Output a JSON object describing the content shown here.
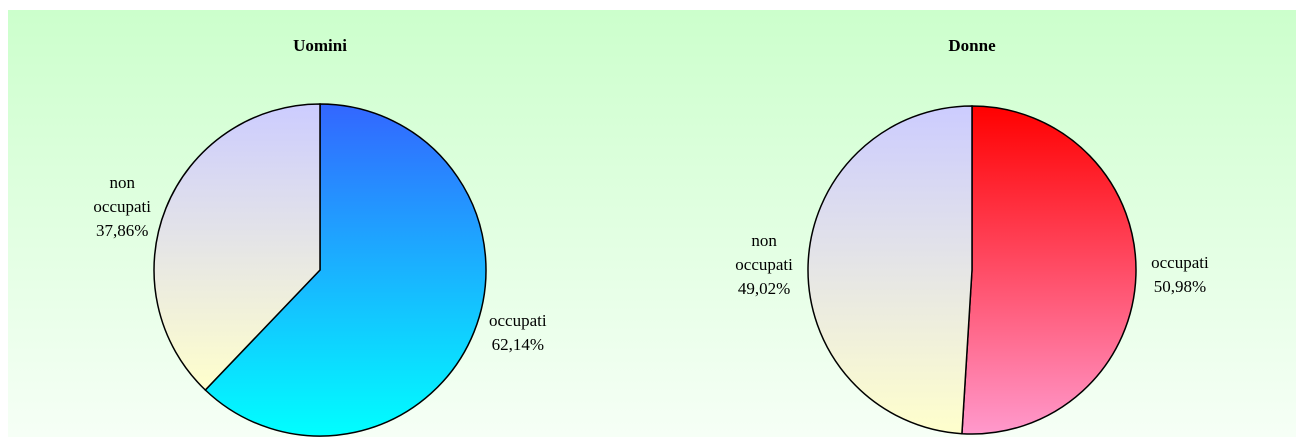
{
  "chart_data": [
    {
      "type": "pie",
      "title": "Uomini",
      "categories": [
        "occupati",
        "non occupati"
      ],
      "values": [
        62.14,
        37.86
      ],
      "value_labels": [
        "62,14%",
        "37,86%"
      ],
      "gradients": [
        [
          "#3366ff",
          "#00ffff"
        ],
        [
          "#ccccff",
          "#ffffcc"
        ]
      ]
    },
    {
      "type": "pie",
      "title": "Donne",
      "categories": [
        "occupati",
        "non occupati"
      ],
      "values": [
        50.98,
        49.02
      ],
      "value_labels": [
        "50,98%",
        "49,02%"
      ],
      "gradients": [
        [
          "#ff0000",
          "#ff99cc"
        ],
        [
          "#ccccff",
          "#ffffcc"
        ]
      ]
    }
  ]
}
